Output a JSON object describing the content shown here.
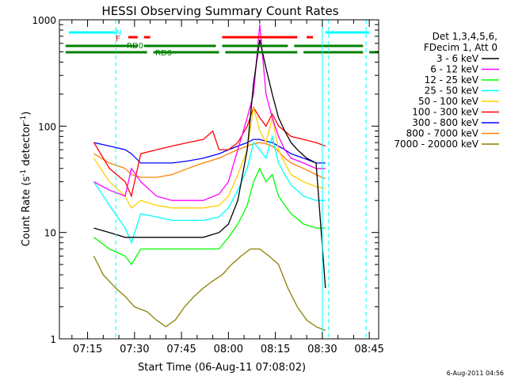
{
  "chart_data": {
    "type": "line",
    "title": "HESSI Observing Summary Count Rates",
    "xlabel": "Start Time (06-Aug-11 07:08:02)",
    "ylabel_main": "Count Rate (s",
    "ylabel_sup1": "-1",
    "ylabel_mid": " detector",
    "ylabel_sup2": "-1",
    "ylabel_end": ")",
    "yscale": "log",
    "ylim": [
      1,
      1000
    ],
    "xlim_minutes": [
      7.1,
      8.8
    ],
    "y_ticks": [
      "1",
      "10",
      "100",
      "1000"
    ],
    "x_ticks": [
      "07:15",
      "07:30",
      "07:45",
      "08:00",
      "08:15",
      "08:30",
      "08:45"
    ],
    "legend_header": [
      "Det 1,3,4,5,6,",
      "FDecim 1, Att 0"
    ],
    "series": [
      {
        "name": "3 - 6 keV",
        "color": "#000000",
        "points": [
          [
            "07:17",
            11
          ],
          [
            "07:22",
            10
          ],
          [
            "07:27",
            9
          ],
          [
            "07:32",
            9
          ],
          [
            "07:37",
            9
          ],
          [
            "07:42",
            9
          ],
          [
            "07:47",
            9
          ],
          [
            "07:52",
            9
          ],
          [
            "07:57",
            10
          ],
          [
            "08:00",
            12
          ],
          [
            "08:03",
            20
          ],
          [
            "08:06",
            60
          ],
          [
            "08:08",
            250
          ],
          [
            "08:10",
            650
          ],
          [
            "08:12",
            350
          ],
          [
            "08:14",
            200
          ],
          [
            "08:16",
            120
          ],
          [
            "08:18",
            90
          ],
          [
            "08:20",
            70
          ],
          [
            "08:22",
            60
          ],
          [
            "08:25",
            50
          ],
          [
            "08:28",
            45
          ],
          [
            "08:31",
            3
          ]
        ]
      },
      {
        "name": "6 - 12 keV",
        "color": "#ff00ff",
        "points": [
          [
            "07:17",
            30
          ],
          [
            "07:22",
            25
          ],
          [
            "07:27",
            22
          ],
          [
            "07:29",
            40
          ],
          [
            "07:32",
            30
          ],
          [
            "07:37",
            22
          ],
          [
            "07:42",
            20
          ],
          [
            "07:47",
            20
          ],
          [
            "07:52",
            20
          ],
          [
            "07:57",
            23
          ],
          [
            "08:00",
            30
          ],
          [
            "08:03",
            60
          ],
          [
            "08:06",
            120
          ],
          [
            "08:08",
            200
          ],
          [
            "08:10",
            900
          ],
          [
            "08:12",
            200
          ],
          [
            "08:14",
            120
          ],
          [
            "08:16",
            80
          ],
          [
            "08:18",
            60
          ],
          [
            "08:20",
            50
          ],
          [
            "08:24",
            45
          ],
          [
            "08:28",
            40
          ],
          [
            "08:31",
            40
          ]
        ]
      },
      {
        "name": "12 - 25 keV",
        "color": "#00ff00",
        "points": [
          [
            "07:17",
            9
          ],
          [
            "07:22",
            7
          ],
          [
            "07:27",
            6
          ],
          [
            "07:29",
            5
          ],
          [
            "07:32",
            7
          ],
          [
            "07:37",
            7
          ],
          [
            "07:42",
            7
          ],
          [
            "07:47",
            7
          ],
          [
            "07:52",
            7
          ],
          [
            "07:57",
            7
          ],
          [
            "08:00",
            9
          ],
          [
            "08:03",
            12
          ],
          [
            "08:06",
            18
          ],
          [
            "08:08",
            30
          ],
          [
            "08:10",
            40
          ],
          [
            "08:12",
            30
          ],
          [
            "08:14",
            35
          ],
          [
            "08:16",
            22
          ],
          [
            "08:18",
            18
          ],
          [
            "08:20",
            15
          ],
          [
            "08:24",
            12
          ],
          [
            "08:28",
            11
          ],
          [
            "08:31",
            11
          ]
        ]
      },
      {
        "name": "25 - 50 keV",
        "color": "#00ffff",
        "points": [
          [
            "07:17",
            30
          ],
          [
            "07:22",
            18
          ],
          [
            "07:27",
            11
          ],
          [
            "07:29",
            8
          ],
          [
            "07:32",
            15
          ],
          [
            "07:37",
            14
          ],
          [
            "07:42",
            13
          ],
          [
            "07:47",
            13
          ],
          [
            "07:52",
            13
          ],
          [
            "07:57",
            14
          ],
          [
            "08:00",
            17
          ],
          [
            "08:03",
            25
          ],
          [
            "08:06",
            40
          ],
          [
            "08:08",
            70
          ],
          [
            "08:10",
            60
          ],
          [
            "08:12",
            50
          ],
          [
            "08:14",
            80
          ],
          [
            "08:16",
            45
          ],
          [
            "08:18",
            35
          ],
          [
            "08:20",
            28
          ],
          [
            "08:24",
            22
          ],
          [
            "08:28",
            20
          ],
          [
            "08:31",
            20
          ]
        ]
      },
      {
        "name": "50 - 100 keV",
        "color": "#ffd000",
        "points": [
          [
            "07:17",
            50
          ],
          [
            "07:22",
            30
          ],
          [
            "07:27",
            22
          ],
          [
            "07:29",
            17
          ],
          [
            "07:32",
            20
          ],
          [
            "07:37",
            18
          ],
          [
            "07:42",
            17
          ],
          [
            "07:47",
            17
          ],
          [
            "07:52",
            17
          ],
          [
            "07:57",
            18
          ],
          [
            "08:00",
            22
          ],
          [
            "08:03",
            35
          ],
          [
            "08:06",
            60
          ],
          [
            "08:08",
            150
          ],
          [
            "08:10",
            90
          ],
          [
            "08:12",
            70
          ],
          [
            "08:14",
            120
          ],
          [
            "08:16",
            60
          ],
          [
            "08:18",
            45
          ],
          [
            "08:20",
            35
          ],
          [
            "08:24",
            30
          ],
          [
            "08:28",
            27
          ],
          [
            "08:31",
            26
          ]
        ]
      },
      {
        "name": "100 - 300 keV",
        "color": "#ff0000",
        "points": [
          [
            "07:17",
            70
          ],
          [
            "07:22",
            40
          ],
          [
            "07:27",
            30
          ],
          [
            "07:29",
            22
          ],
          [
            "07:32",
            55
          ],
          [
            "07:37",
            60
          ],
          [
            "07:42",
            65
          ],
          [
            "07:47",
            70
          ],
          [
            "07:52",
            75
          ],
          [
            "07:55",
            90
          ],
          [
            "07:57",
            60
          ],
          [
            "08:00",
            60
          ],
          [
            "08:03",
            70
          ],
          [
            "08:06",
            100
          ],
          [
            "08:08",
            150
          ],
          [
            "08:10",
            120
          ],
          [
            "08:12",
            100
          ],
          [
            "08:14",
            130
          ],
          [
            "08:16",
            100
          ],
          [
            "08:18",
            90
          ],
          [
            "08:20",
            80
          ],
          [
            "08:24",
            75
          ],
          [
            "08:28",
            70
          ],
          [
            "08:31",
            65
          ]
        ]
      },
      {
        "name": "300 - 800 keV",
        "color": "#0000ff",
        "points": [
          [
            "07:17",
            70
          ],
          [
            "07:22",
            65
          ],
          [
            "07:27",
            60
          ],
          [
            "07:29",
            55
          ],
          [
            "07:32",
            45
          ],
          [
            "07:37",
            45
          ],
          [
            "07:42",
            45
          ],
          [
            "07:47",
            47
          ],
          [
            "07:52",
            50
          ],
          [
            "07:57",
            55
          ],
          [
            "08:00",
            60
          ],
          [
            "08:03",
            65
          ],
          [
            "08:06",
            70
          ],
          [
            "08:08",
            75
          ],
          [
            "08:10",
            75
          ],
          [
            "08:12",
            72
          ],
          [
            "08:14",
            70
          ],
          [
            "08:16",
            65
          ],
          [
            "08:18",
            60
          ],
          [
            "08:20",
            55
          ],
          [
            "08:24",
            50
          ],
          [
            "08:28",
            45
          ],
          [
            "08:31",
            45
          ]
        ]
      },
      {
        "name": "800 - 7000 keV",
        "color": "#ff8000",
        "points": [
          [
            "07:17",
            55
          ],
          [
            "07:22",
            45
          ],
          [
            "07:27",
            40
          ],
          [
            "07:29",
            35
          ],
          [
            "07:32",
            33
          ],
          [
            "07:37",
            33
          ],
          [
            "07:42",
            35
          ],
          [
            "07:47",
            40
          ],
          [
            "07:52",
            45
          ],
          [
            "07:57",
            50
          ],
          [
            "08:00",
            55
          ],
          [
            "08:03",
            60
          ],
          [
            "08:06",
            65
          ],
          [
            "08:08",
            68
          ],
          [
            "08:10",
            70
          ],
          [
            "08:12",
            68
          ],
          [
            "08:14",
            65
          ],
          [
            "08:16",
            58
          ],
          [
            "08:18",
            50
          ],
          [
            "08:20",
            45
          ],
          [
            "08:24",
            40
          ],
          [
            "08:28",
            35
          ],
          [
            "08:31",
            32
          ]
        ]
      },
      {
        "name": "7000 - 20000 keV",
        "color": "#8b8000",
        "points": [
          [
            "07:17",
            6
          ],
          [
            "07:20",
            4
          ],
          [
            "07:24",
            3
          ],
          [
            "07:27",
            2.5
          ],
          [
            "07:30",
            2
          ],
          [
            "07:34",
            1.8
          ],
          [
            "07:37",
            1.5
          ],
          [
            "07:40",
            1.3
          ],
          [
            "07:43",
            1.5
          ],
          [
            "07:46",
            2
          ],
          [
            "07:49",
            2.5
          ],
          [
            "07:52",
            3
          ],
          [
            "07:55",
            3.5
          ],
          [
            "07:58",
            4
          ],
          [
            "08:01",
            5
          ],
          [
            "08:04",
            6
          ],
          [
            "08:07",
            7
          ],
          [
            "08:10",
            7
          ],
          [
            "08:13",
            6
          ],
          [
            "08:16",
            5
          ],
          [
            "08:19",
            3
          ],
          [
            "08:22",
            2
          ],
          [
            "08:25",
            1.5
          ],
          [
            "08:28",
            1.3
          ],
          [
            "08:31",
            1.2
          ]
        ]
      }
    ],
    "flags": [
      {
        "label": "N",
        "color": "#00ffff",
        "segments": [
          [
            "07:09",
            "07:24"
          ],
          [
            "08:31",
            "08:45"
          ]
        ]
      },
      {
        "label": "F",
        "color": "#ff0000",
        "segments": [
          [
            "07:28",
            "07:31"
          ],
          [
            "07:33",
            "07:35"
          ],
          [
            "07:58",
            "08:22"
          ],
          [
            "08:25",
            "08:27"
          ]
        ]
      },
      {
        "label": "RD0",
        "color": "#008000",
        "segments": [
          [
            "07:08",
            "07:31"
          ],
          [
            "07:33",
            "07:56"
          ],
          [
            "07:58",
            "08:19"
          ],
          [
            "08:21",
            "08:43"
          ]
        ]
      },
      {
        "label": "RD6",
        "color": "#008000",
        "segments": [
          [
            "07:08",
            "07:34"
          ],
          [
            "07:36",
            "07:57"
          ],
          [
            "07:59",
            "08:22"
          ],
          [
            "08:24",
            "08:43"
          ],
          [
            "08:45",
            "08:48"
          ]
        ]
      }
    ],
    "vlines": [
      {
        "time": "07:24",
        "color": "#00ffff",
        "style": "dashed"
      },
      {
        "time": "08:30",
        "color": "#00ffff",
        "style": "solid"
      },
      {
        "time": "08:32",
        "color": "#00ffff",
        "style": "dashed"
      },
      {
        "time": "08:44",
        "color": "#00ffff",
        "style": "dashed"
      }
    ],
    "grid": false,
    "legend_position": "right"
  },
  "footer_timestamp": "6-Aug-2011 04:56"
}
